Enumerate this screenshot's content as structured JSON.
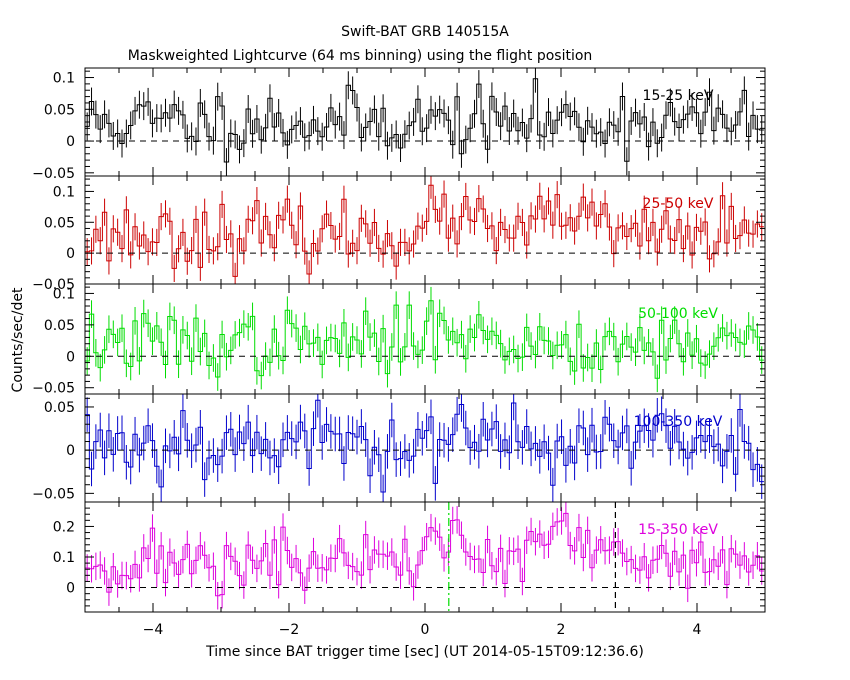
{
  "title": "Swift-BAT GRB 140515A",
  "subtitle": "Maskweighted Lightcurve (64 ms binning) using the flight position",
  "xlabel": "Time since BAT trigger time [sec] (UT 2014-05-15T09:12:36.6)",
  "ylabel": "Counts/sec/det",
  "chart_data": [
    {
      "type": "line",
      "series": [
        {
          "name": "15-25 keV",
          "color": "#000000"
        }
      ],
      "xlim": [
        -5,
        5
      ],
      "ylim": [
        -0.055,
        0.115
      ],
      "yticks": [
        -0.05,
        0,
        0.05,
        0.1
      ],
      "ytick_labels": [
        "−0.05",
        "0",
        "0.05",
        "0.1"
      ],
      "level": 0.03,
      "sigma": 0.025,
      "err": 0.022,
      "seed": 11,
      "bumps": []
    },
    {
      "type": "line",
      "series": [
        {
          "name": "25-50 keV",
          "color": "#cc0000"
        }
      ],
      "xlim": [
        -5,
        5
      ],
      "ylim": [
        -0.05,
        0.125
      ],
      "yticks": [
        -0.05,
        0,
        0.05,
        0.1
      ],
      "ytick_labels": [
        "−0.05",
        "0",
        "0.05",
        "0.1"
      ],
      "level": 0.03,
      "sigma": 0.025,
      "err": 0.022,
      "seed": 23,
      "bumps": [
        {
          "t": 0.4,
          "amp": 0.03,
          "w": 0.3
        },
        {
          "t": 2.1,
          "amp": 0.04,
          "w": 0.25
        }
      ]
    },
    {
      "type": "line",
      "series": [
        {
          "name": "50-100 keV",
          "color": "#00dd00"
        }
      ],
      "xlim": [
        -5,
        5
      ],
      "ylim": [
        -0.06,
        0.115
      ],
      "yticks": [
        -0.05,
        0,
        0.05,
        0.1
      ],
      "ytick_labels": [
        "−0.05",
        "0",
        "0.05",
        "0.1"
      ],
      "level": 0.02,
      "sigma": 0.025,
      "err": 0.022,
      "seed": 37,
      "bumps": [
        {
          "t": 0.3,
          "amp": 0.04,
          "w": 0.25
        }
      ]
    },
    {
      "type": "line",
      "series": [
        {
          "name": "100-350 keV",
          "color": "#0000cc"
        }
      ],
      "xlim": [
        -5,
        5
      ],
      "ylim": [
        -0.06,
        0.065
      ],
      "yticks": [
        -0.05,
        0,
        0.05
      ],
      "ytick_labels": [
        "−0.05",
        "0",
        "0.05"
      ],
      "level": 0.01,
      "sigma": 0.022,
      "err": 0.02,
      "seed": 53,
      "bumps": []
    },
    {
      "type": "line",
      "series": [
        {
          "name": "15-350 keV",
          "color": "#dd00dd"
        }
      ],
      "xlim": [
        -5,
        5
      ],
      "ylim": [
        -0.08,
        0.28
      ],
      "yticks": [
        0,
        0.1,
        0.2
      ],
      "ytick_labels": [
        "0",
        "0.1",
        "0.2"
      ],
      "level": 0.08,
      "sigma": 0.05,
      "err": 0.045,
      "seed": 71,
      "bumps": [
        {
          "t": 0.3,
          "amp": 0.08,
          "w": 0.3
        },
        {
          "t": 2.0,
          "amp": 0.1,
          "w": 0.3
        }
      ],
      "vlines": [
        {
          "x": 0.35,
          "color": "#00dd00",
          "style": "dashdot"
        },
        {
          "x": 2.8,
          "color": "#000000",
          "style": "dash"
        }
      ]
    }
  ],
  "xticks": [
    -4,
    -2,
    0,
    2,
    4
  ],
  "xtick_labels": [
    "−4",
    "−2",
    "0",
    "2",
    "4"
  ],
  "bin_seconds": 0.064
}
